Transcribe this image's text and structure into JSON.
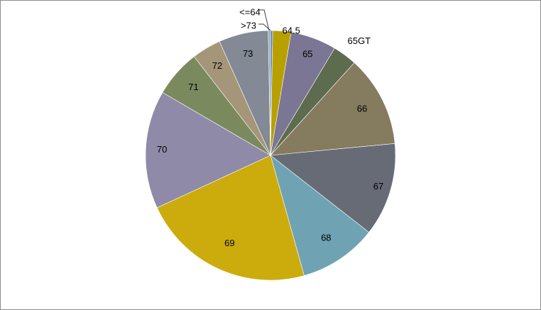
{
  "chart_data": {
    "type": "pie",
    "title": "",
    "categories": [
      "<=64",
      "64.5",
      "65",
      "65GT",
      "66",
      "67",
      "68",
      "69",
      "70",
      "71",
      "72",
      "73",
      ">73"
    ],
    "values": [
      0.3,
      2.5,
      6.3,
      3.3,
      12.5,
      12.8,
      10.7,
      23.8,
      16.2,
      6.5,
      4.0,
      6.8,
      0.3
    ],
    "colors": [
      "#4f81bd",
      "#b8a000",
      "#7a7694",
      "#5d6b4f",
      "#857b5f",
      "#666b75",
      "#6fa3b3",
      "#ccab0c",
      "#8f8aa8",
      "#7a8a5e",
      "#a69679",
      "#838995",
      "#9aa7b4"
    ],
    "start_angle_deg": 0,
    "direction": "clockwise",
    "legend": "none",
    "data_labels": "category names"
  }
}
